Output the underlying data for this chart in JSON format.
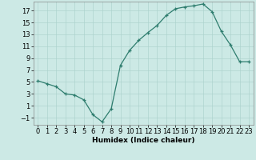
{
  "x": [
    0,
    1,
    2,
    3,
    4,
    5,
    6,
    7,
    8,
    9,
    10,
    11,
    12,
    13,
    14,
    15,
    16,
    17,
    18,
    19,
    20,
    21,
    22,
    23
  ],
  "y": [
    5.2,
    4.7,
    4.2,
    3.0,
    2.8,
    2.0,
    -0.5,
    -1.7,
    0.5,
    7.8,
    10.3,
    12.0,
    13.3,
    14.5,
    16.2,
    17.3,
    17.6,
    17.8,
    18.1,
    16.8,
    13.5,
    11.2,
    8.4,
    8.4
  ],
  "xlabel": "Humidex (Indice chaleur)",
  "xlim": [
    -0.5,
    23.5
  ],
  "ylim": [
    -2.2,
    18.5
  ],
  "yticks": [
    -1,
    1,
    3,
    5,
    7,
    9,
    11,
    13,
    15,
    17
  ],
  "xticks": [
    0,
    1,
    2,
    3,
    4,
    5,
    6,
    7,
    8,
    9,
    10,
    11,
    12,
    13,
    14,
    15,
    16,
    17,
    18,
    19,
    20,
    21,
    22,
    23
  ],
  "line_color": "#2e7d6e",
  "marker": "+",
  "bg_color": "#cce9e5",
  "grid_color": "#aed4cf",
  "axis_fontsize": 6.5,
  "tick_fontsize": 6.0
}
